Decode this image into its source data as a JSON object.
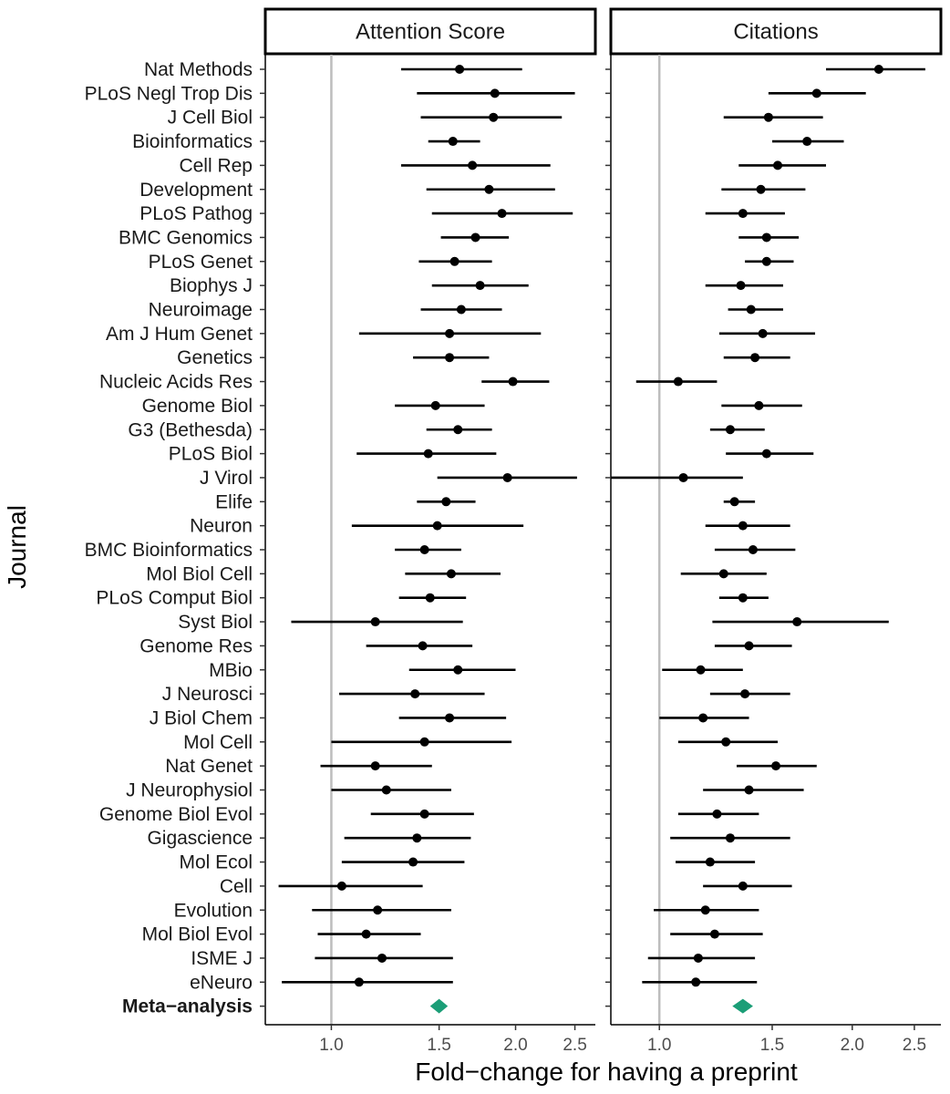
{
  "chart_data": {
    "type": "forest",
    "xlabel": "Fold−change for having a preprint",
    "ylabel": "Journal",
    "x_scale": "log",
    "x_ticks": [
      1.0,
      1.5,
      2.0,
      2.5
    ],
    "x_tick_labels": [
      "1.0",
      "1.5",
      "2.0",
      "2.5"
    ],
    "reference_line": 1.0,
    "journals": [
      "Nat Methods",
      "PLoS Negl Trop Dis",
      "J Cell Biol",
      "Bioinformatics",
      "Cell Rep",
      "Development",
      "PLoS Pathog",
      "BMC Genomics",
      "PLoS Genet",
      "Biophys J",
      "Neuroimage",
      "Am J Hum Genet",
      "Genetics",
      "Nucleic Acids Res",
      "Genome Biol",
      "G3 (Bethesda)",
      "PLoS Biol",
      "J Virol",
      "Elife",
      "Neuron",
      "BMC Bioinformatics",
      "Mol Biol Cell",
      "PLoS Comput Biol",
      "Syst Biol",
      "Genome Res",
      "MBio",
      "J Neurosci",
      "J Biol Chem",
      "Mol Cell",
      "Nat Genet",
      "J Neurophysiol",
      "Genome Biol Evol",
      "Gigascience",
      "Mol Ecol",
      "Cell",
      "Evolution",
      "Mol Biol Evol",
      "ISME J",
      "eNeuro"
    ],
    "meta_label": "Meta−analysis",
    "point_color": "#000000",
    "meta_color": "#1b9e77",
    "panels": [
      {
        "title": "Attention Score",
        "xlim": [
          0.78,
          2.7
        ],
        "estimates": [
          [
            1.62,
            1.3,
            2.05
          ],
          [
            1.85,
            1.38,
            2.5
          ],
          [
            1.84,
            1.4,
            2.38
          ],
          [
            1.58,
            1.44,
            1.75
          ],
          [
            1.7,
            1.3,
            2.28
          ],
          [
            1.81,
            1.43,
            2.32
          ],
          [
            1.9,
            1.46,
            2.48
          ],
          [
            1.72,
            1.51,
            1.95
          ],
          [
            1.59,
            1.39,
            1.83
          ],
          [
            1.75,
            1.46,
            2.1
          ],
          [
            1.63,
            1.4,
            1.9
          ],
          [
            1.56,
            1.11,
            2.2
          ],
          [
            1.56,
            1.36,
            1.81
          ],
          [
            1.98,
            1.76,
            2.27
          ],
          [
            1.48,
            1.27,
            1.78
          ],
          [
            1.61,
            1.43,
            1.83
          ],
          [
            1.44,
            1.1,
            1.86
          ],
          [
            1.94,
            1.49,
            2.52
          ],
          [
            1.54,
            1.38,
            1.72
          ],
          [
            1.49,
            1.08,
            2.06
          ],
          [
            1.42,
            1.27,
            1.63
          ],
          [
            1.57,
            1.32,
            1.89
          ],
          [
            1.45,
            1.29,
            1.66
          ],
          [
            1.18,
            0.86,
            1.64
          ],
          [
            1.41,
            1.14,
            1.7
          ],
          [
            1.61,
            1.34,
            2.0
          ],
          [
            1.37,
            1.03,
            1.78
          ],
          [
            1.56,
            1.29,
            1.93
          ],
          [
            1.42,
            1.0,
            1.97
          ],
          [
            1.18,
            0.96,
            1.46
          ],
          [
            1.23,
            1.0,
            1.57
          ],
          [
            1.42,
            1.16,
            1.71
          ],
          [
            1.38,
            1.05,
            1.69
          ],
          [
            1.36,
            1.04,
            1.65
          ],
          [
            1.04,
            0.82,
            1.41
          ],
          [
            1.19,
            0.93,
            1.57
          ],
          [
            1.14,
            0.95,
            1.4
          ],
          [
            1.21,
            0.94,
            1.58
          ],
          [
            1.11,
            0.83,
            1.58
          ]
        ],
        "meta": [
          1.5,
          1.45,
          1.55
        ]
      },
      {
        "title": "Citations",
        "xlim": [
          0.84,
          2.75
        ],
        "estimates": [
          [
            2.2,
            1.82,
            2.6
          ],
          [
            1.76,
            1.48,
            2.1
          ],
          [
            1.48,
            1.26,
            1.8
          ],
          [
            1.7,
            1.5,
            1.94
          ],
          [
            1.53,
            1.33,
            1.82
          ],
          [
            1.44,
            1.25,
            1.69
          ],
          [
            1.35,
            1.18,
            1.57
          ],
          [
            1.47,
            1.33,
            1.65
          ],
          [
            1.47,
            1.36,
            1.62
          ],
          [
            1.34,
            1.18,
            1.56
          ],
          [
            1.39,
            1.28,
            1.56
          ],
          [
            1.45,
            1.24,
            1.75
          ],
          [
            1.41,
            1.26,
            1.6
          ],
          [
            1.07,
            0.92,
            1.23
          ],
          [
            1.43,
            1.25,
            1.67
          ],
          [
            1.29,
            1.2,
            1.46
          ],
          [
            1.47,
            1.27,
            1.74
          ],
          [
            1.09,
            0.84,
            1.35
          ],
          [
            1.31,
            1.26,
            1.41
          ],
          [
            1.35,
            1.18,
            1.6
          ],
          [
            1.4,
            1.22,
            1.63
          ],
          [
            1.26,
            1.08,
            1.47
          ],
          [
            1.35,
            1.24,
            1.48
          ],
          [
            1.64,
            1.21,
            2.28
          ],
          [
            1.38,
            1.22,
            1.61
          ],
          [
            1.16,
            1.01,
            1.35
          ],
          [
            1.36,
            1.2,
            1.6
          ],
          [
            1.17,
            1.0,
            1.38
          ],
          [
            1.27,
            1.07,
            1.53
          ],
          [
            1.52,
            1.32,
            1.76
          ],
          [
            1.38,
            1.17,
            1.68
          ],
          [
            1.23,
            1.07,
            1.43
          ],
          [
            1.29,
            1.04,
            1.6
          ],
          [
            1.2,
            1.06,
            1.41
          ],
          [
            1.35,
            1.17,
            1.61
          ],
          [
            1.18,
            0.98,
            1.43
          ],
          [
            1.22,
            1.04,
            1.45
          ],
          [
            1.15,
            0.96,
            1.41
          ],
          [
            1.14,
            0.94,
            1.42
          ]
        ],
        "meta": [
          1.35,
          1.3,
          1.4
        ]
      }
    ]
  }
}
